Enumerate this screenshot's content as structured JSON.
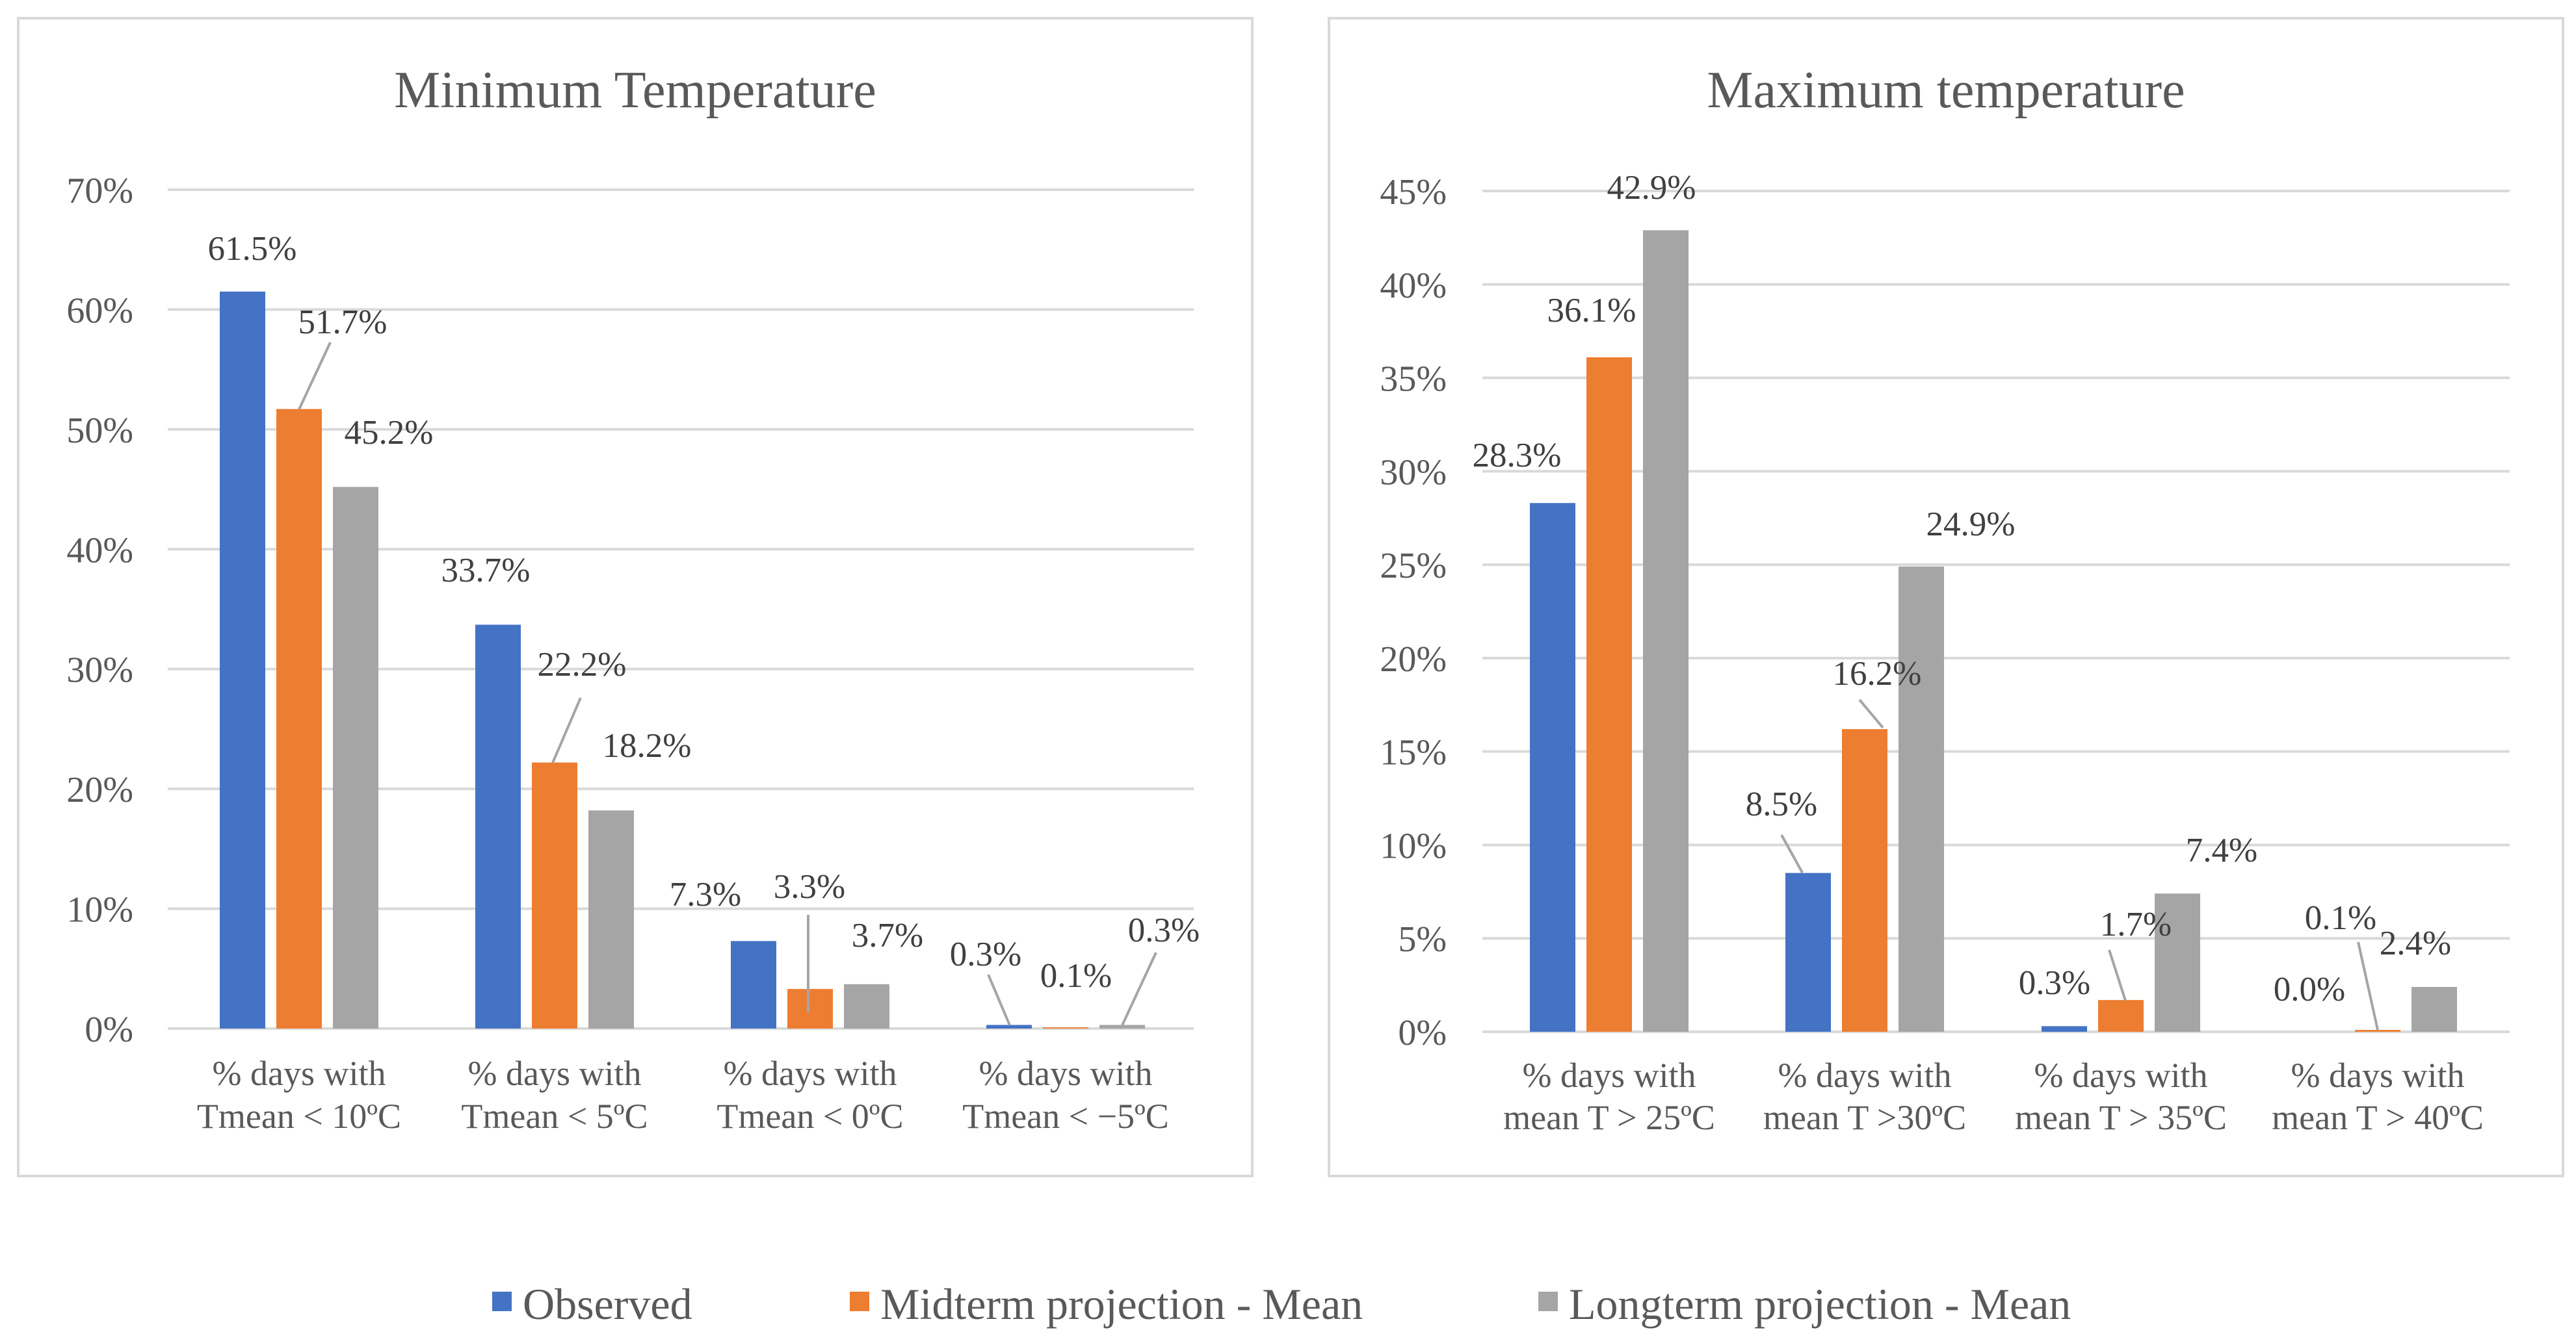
{
  "colors": {
    "observed": "#4472C4",
    "midterm": "#ED7D31",
    "longterm": "#A5A5A5",
    "grid": "#D9D9D9",
    "frame": "#D9D9D9",
    "text": "#595959",
    "label": "#404040"
  },
  "legend": {
    "items": [
      {
        "name": "Observed",
        "color": "#4472C4"
      },
      {
        "name": "Midterm projection - Mean",
        "color": "#ED7D31"
      },
      {
        "name": "Longterm projection - Mean",
        "color": "#A5A5A5"
      }
    ]
  },
  "chart_data": [
    {
      "type": "bar",
      "title": "Minimum Temperature",
      "xlabel": "",
      "ylabel": "",
      "ylim": [
        0,
        70
      ],
      "y_ticks": [
        0,
        10,
        20,
        30,
        40,
        50,
        60,
        70
      ],
      "y_tick_labels": [
        "0%",
        "10%",
        "20%",
        "30%",
        "40%",
        "50%",
        "60%",
        "70%"
      ],
      "grid": true,
      "categories": [
        [
          "% days with",
          "Tmean < 10ºC"
        ],
        [
          "% days with",
          "Tmean < 5ºC"
        ],
        [
          "% days with",
          "Tmean < 0ºC"
        ],
        [
          "% days with",
          "Tmean < −5ºC"
        ]
      ],
      "series": [
        {
          "name": "Observed",
          "values": [
            61.5,
            33.7,
            7.3,
            0.3
          ],
          "labels": [
            "61.5%",
            "33.7%",
            "7.3%",
            "0.3%"
          ]
        },
        {
          "name": "Midterm projection - Mean",
          "values": [
            51.7,
            22.2,
            3.3,
            0.1
          ],
          "labels": [
            "51.7%",
            "22.2%",
            "3.3%",
            "0.1%"
          ]
        },
        {
          "name": "Longterm projection - Mean",
          "values": [
            45.2,
            18.2,
            3.7,
            0.3
          ],
          "labels": [
            "45.2%",
            "18.2%",
            "3.7%",
            "0.3%"
          ]
        }
      ]
    },
    {
      "type": "bar",
      "title": "Maximum temperature",
      "xlabel": "",
      "ylabel": "",
      "ylim": [
        0,
        45
      ],
      "y_ticks": [
        0,
        5,
        10,
        15,
        20,
        25,
        30,
        35,
        40,
        45
      ],
      "y_tick_labels": [
        "0%",
        "5%",
        "10%",
        "15%",
        "20%",
        "25%",
        "30%",
        "35%",
        "40%",
        "45%"
      ],
      "grid": true,
      "categories": [
        [
          "% days with",
          "mean T > 25ºC"
        ],
        [
          "% days with",
          "mean T >30ºC"
        ],
        [
          "% days with",
          "mean T > 35ºC"
        ],
        [
          "% days with",
          "mean T > 40ºC"
        ]
      ],
      "series": [
        {
          "name": "Observed",
          "values": [
            28.3,
            8.5,
            0.3,
            0.0
          ],
          "labels": [
            "28.3%",
            "8.5%",
            "0.3%",
            "0.0%"
          ]
        },
        {
          "name": "Midterm projection - Mean",
          "values": [
            36.1,
            16.2,
            1.7,
            0.1
          ],
          "labels": [
            "36.1%",
            "16.2%",
            "1.7%",
            "0.1%"
          ]
        },
        {
          "name": "Longterm projection - Mean",
          "values": [
            42.9,
            24.9,
            7.4,
            2.4
          ],
          "labels": [
            "42.9%",
            "24.9%",
            "7.4%",
            "2.4%"
          ]
        }
      ]
    }
  ]
}
